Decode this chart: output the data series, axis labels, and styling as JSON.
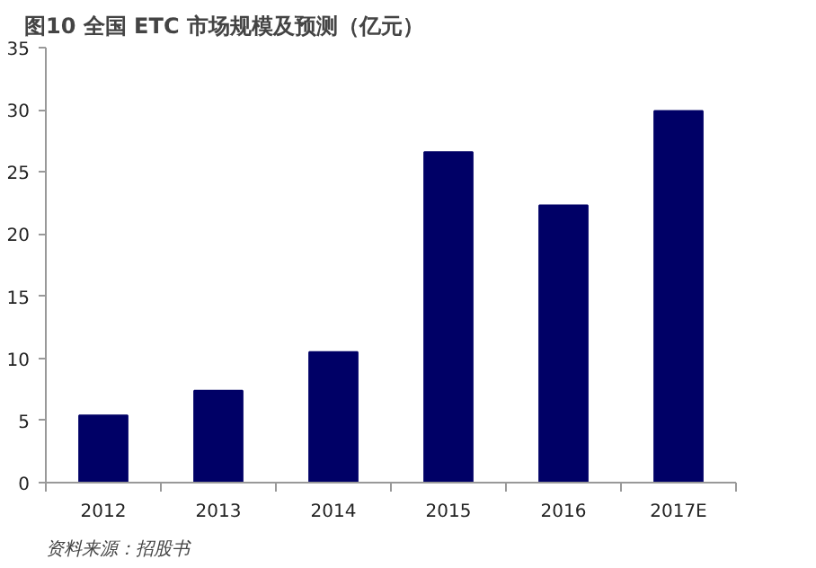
{
  "chart_data": {
    "type": "bar",
    "title": "图10 全国 ETC 市场规模及预测（亿元）",
    "categories": [
      "2012",
      "2013",
      "2014",
      "2015",
      "2016",
      "2017E"
    ],
    "values": [
      5.4,
      7.4,
      10.5,
      26.6,
      22.3,
      29.9
    ],
    "color": "#000066",
    "ylim": [
      0,
      35
    ],
    "yticks": [
      0,
      5,
      10,
      15,
      20,
      25,
      30,
      35
    ],
    "grid": false,
    "annotations": [
      "资料来源：招股书"
    ]
  }
}
